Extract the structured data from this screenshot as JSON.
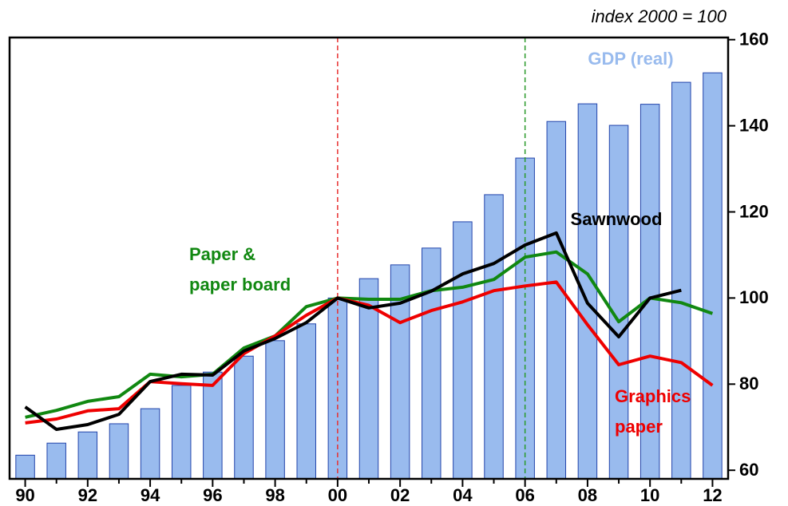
{
  "chart_data": {
    "type": "bar_line",
    "annotation": "index 2000 = 100",
    "categories": [
      "90",
      null,
      "92",
      null,
      "94",
      null,
      "96",
      null,
      "98",
      null,
      "00",
      null,
      "02",
      null,
      "04",
      null,
      "06",
      null,
      "08",
      null,
      "10",
      null,
      "12"
    ],
    "ylim": [
      58,
      160.5
    ],
    "yticks": [
      60,
      80,
      100,
      120,
      140,
      160
    ],
    "y_axis_side": "right",
    "reference_lines": [
      {
        "at": 10,
        "color": "#e83030"
      },
      {
        "at": 16,
        "color": "#2a9a2a"
      }
    ],
    "series": [
      {
        "label": [
          "GDP (real)"
        ],
        "kind": "bar",
        "color": "#99bbee",
        "label_color": "#99bbee",
        "values": [
          63.5,
          66.3,
          68.9,
          70.8,
          74.3,
          79.7,
          82.8,
          86.5,
          90.1,
          94,
          100,
          104.5,
          107.7,
          111.6,
          117.7,
          124,
          132.5,
          141,
          145.1,
          140.1,
          145,
          150.1,
          152.3
        ]
      },
      {
        "label": [
          "Paper &",
          "paper board"
        ],
        "kind": "line",
        "color": "#118811",
        "values": [
          72.3,
          73.9,
          76,
          77.1,
          82.3,
          81.7,
          82.3,
          88.4,
          91.2,
          98,
          100,
          99.7,
          99.7,
          101.7,
          102.5,
          104.3,
          109.5,
          110.7,
          105.6,
          94.5,
          100,
          98.9,
          96.4
        ]
      },
      {
        "label": [
          "Graphics",
          "paper"
        ],
        "kind": "line",
        "color": "#ee0000",
        "values": [
          71,
          71.9,
          73.8,
          74.3,
          80.6,
          80.1,
          79.7,
          87.1,
          91.2,
          96,
          100,
          98.3,
          94.3,
          97.1,
          99.1,
          101.7,
          102.8,
          103.7,
          93.8,
          84.5,
          86.5,
          85,
          79.7
        ]
      },
      {
        "label": [
          "Sawnwood"
        ],
        "kind": "line",
        "color": "#000000",
        "values": [
          74.7,
          69.5,
          70.6,
          73,
          80.6,
          82.3,
          82.1,
          87.7,
          90.6,
          94.3,
          100,
          97.7,
          98.8,
          101.6,
          105.6,
          108,
          112.3,
          115.1,
          98.8,
          91,
          100,
          101.8,
          null
        ]
      }
    ]
  }
}
